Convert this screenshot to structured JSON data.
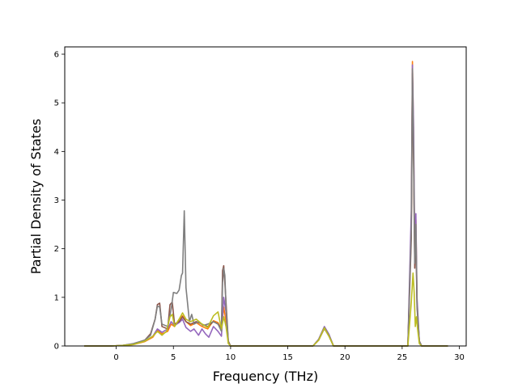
{
  "chart_data": {
    "type": "line",
    "title": "",
    "xlabel": "Frequency (THz)",
    "ylabel": "Partial Density of States",
    "xlim": [
      -4.5,
      30.6
    ],
    "ylim": [
      0,
      6.15
    ],
    "xticks": [
      0,
      5,
      10,
      15,
      20,
      25,
      30
    ],
    "yticks": [
      0,
      1,
      2,
      3,
      4,
      5,
      6
    ],
    "grid": false,
    "legend": "none",
    "series": [
      {
        "color": "#ff7f0e",
        "points": [
          [
            -2.8,
            0
          ],
          [
            -0.5,
            0
          ],
          [
            0.5,
            0.01
          ],
          [
            1.5,
            0.03
          ],
          [
            2.5,
            0.09
          ],
          [
            3.2,
            0.18
          ],
          [
            3.6,
            0.32
          ],
          [
            4.0,
            0.25
          ],
          [
            4.5,
            0.3
          ],
          [
            4.8,
            0.45
          ],
          [
            5.1,
            0.4
          ],
          [
            5.5,
            0.55
          ],
          [
            5.8,
            0.62
          ],
          [
            6.1,
            0.5
          ],
          [
            6.5,
            0.42
          ],
          [
            7.0,
            0.48
          ],
          [
            7.5,
            0.4
          ],
          [
            8.0,
            0.35
          ],
          [
            8.5,
            0.52
          ],
          [
            8.9,
            0.48
          ],
          [
            9.2,
            0.35
          ],
          [
            9.4,
            0.8
          ],
          [
            9.6,
            0.5
          ],
          [
            9.8,
            0.06
          ],
          [
            10.0,
            0
          ],
          [
            17.2,
            0
          ],
          [
            17.7,
            0.12
          ],
          [
            18.2,
            0.38
          ],
          [
            18.6,
            0.22
          ],
          [
            19.0,
            0
          ],
          [
            25.5,
            0
          ],
          [
            25.8,
            2.5
          ],
          [
            25.9,
            5.85
          ],
          [
            26.0,
            4.2
          ],
          [
            26.1,
            1.8
          ],
          [
            26.2,
            2.6
          ],
          [
            26.3,
            0.9
          ],
          [
            26.5,
            0.1
          ],
          [
            26.7,
            0
          ],
          [
            29.0,
            0
          ]
        ]
      },
      {
        "color": "#9467bd",
        "points": [
          [
            -2.8,
            0
          ],
          [
            -0.5,
            0
          ],
          [
            0.5,
            0.01
          ],
          [
            1.5,
            0.04
          ],
          [
            2.5,
            0.1
          ],
          [
            3.2,
            0.2
          ],
          [
            3.6,
            0.35
          ],
          [
            4.0,
            0.28
          ],
          [
            4.5,
            0.35
          ],
          [
            4.8,
            0.5
          ],
          [
            5.1,
            0.42
          ],
          [
            5.5,
            0.48
          ],
          [
            5.8,
            0.55
          ],
          [
            6.1,
            0.38
          ],
          [
            6.5,
            0.3
          ],
          [
            6.8,
            0.35
          ],
          [
            7.2,
            0.22
          ],
          [
            7.5,
            0.35
          ],
          [
            7.8,
            0.25
          ],
          [
            8.1,
            0.18
          ],
          [
            8.5,
            0.4
          ],
          [
            8.9,
            0.3
          ],
          [
            9.2,
            0.2
          ],
          [
            9.4,
            1.0
          ],
          [
            9.6,
            0.7
          ],
          [
            9.8,
            0.08
          ],
          [
            10.0,
            0
          ],
          [
            17.2,
            0
          ],
          [
            17.7,
            0.14
          ],
          [
            18.2,
            0.4
          ],
          [
            18.6,
            0.24
          ],
          [
            19.0,
            0
          ],
          [
            25.5,
            0
          ],
          [
            25.8,
            2.8
          ],
          [
            25.9,
            5.78
          ],
          [
            26.0,
            4.5
          ],
          [
            26.1,
            2.0
          ],
          [
            26.2,
            2.72
          ],
          [
            26.3,
            1.0
          ],
          [
            26.5,
            0.1
          ],
          [
            26.7,
            0
          ],
          [
            29.0,
            0
          ]
        ]
      },
      {
        "color": "#8c564b",
        "points": [
          [
            -2.8,
            0
          ],
          [
            -0.5,
            0
          ],
          [
            0.5,
            0.01
          ],
          [
            1.5,
            0.04
          ],
          [
            2.5,
            0.12
          ],
          [
            3.0,
            0.25
          ],
          [
            3.4,
            0.55
          ],
          [
            3.6,
            0.85
          ],
          [
            3.8,
            0.88
          ],
          [
            4.0,
            0.4
          ],
          [
            4.5,
            0.35
          ],
          [
            4.7,
            0.85
          ],
          [
            4.9,
            0.9
          ],
          [
            5.1,
            0.45
          ],
          [
            5.5,
            0.5
          ],
          [
            5.8,
            0.6
          ],
          [
            6.1,
            0.5
          ],
          [
            6.5,
            0.45
          ],
          [
            7.0,
            0.5
          ],
          [
            7.5,
            0.45
          ],
          [
            8.0,
            0.4
          ],
          [
            8.5,
            0.5
          ],
          [
            8.9,
            0.45
          ],
          [
            9.2,
            0.35
          ],
          [
            9.3,
            1.55
          ],
          [
            9.4,
            1.65
          ],
          [
            9.5,
            1.3
          ],
          [
            9.6,
            0.9
          ],
          [
            9.8,
            0.1
          ],
          [
            10.0,
            0
          ],
          [
            17.2,
            0
          ],
          [
            17.7,
            0.12
          ],
          [
            18.2,
            0.36
          ],
          [
            18.6,
            0.2
          ],
          [
            19.0,
            0
          ],
          [
            25.5,
            0
          ],
          [
            25.8,
            2.2
          ],
          [
            25.9,
            5.6
          ],
          [
            26.0,
            3.8
          ],
          [
            26.1,
            1.6
          ],
          [
            26.2,
            2.3
          ],
          [
            26.3,
            0.8
          ],
          [
            26.5,
            0.1
          ],
          [
            26.7,
            0
          ],
          [
            29.0,
            0
          ]
        ]
      },
      {
        "color": "#7f7f7f",
        "points": [
          [
            -2.8,
            0
          ],
          [
            -0.5,
            0
          ],
          [
            0.5,
            0.01
          ],
          [
            1.5,
            0.05
          ],
          [
            2.5,
            0.12
          ],
          [
            3.0,
            0.22
          ],
          [
            3.4,
            0.55
          ],
          [
            3.6,
            0.82
          ],
          [
            3.8,
            0.8
          ],
          [
            4.0,
            0.45
          ],
          [
            4.5,
            0.4
          ],
          [
            4.8,
            0.75
          ],
          [
            5.0,
            1.1
          ],
          [
            5.3,
            1.08
          ],
          [
            5.5,
            1.15
          ],
          [
            5.7,
            1.45
          ],
          [
            5.8,
            1.5
          ],
          [
            5.95,
            2.78
          ],
          [
            6.1,
            1.2
          ],
          [
            6.4,
            0.5
          ],
          [
            6.6,
            0.65
          ],
          [
            6.8,
            0.45
          ],
          [
            7.2,
            0.5
          ],
          [
            7.6,
            0.42
          ],
          [
            8.0,
            0.45
          ],
          [
            8.5,
            0.5
          ],
          [
            8.9,
            0.45
          ],
          [
            9.2,
            0.3
          ],
          [
            9.3,
            1.3
          ],
          [
            9.4,
            1.6
          ],
          [
            9.5,
            1.45
          ],
          [
            9.6,
            0.8
          ],
          [
            9.8,
            0.08
          ],
          [
            10.0,
            0
          ],
          [
            17.2,
            0
          ],
          [
            17.7,
            0.13
          ],
          [
            18.2,
            0.38
          ],
          [
            18.6,
            0.22
          ],
          [
            19.0,
            0
          ],
          [
            25.5,
            0
          ],
          [
            25.8,
            2.4
          ],
          [
            25.9,
            5.7
          ],
          [
            26.0,
            4.0
          ],
          [
            26.1,
            1.7
          ],
          [
            26.2,
            2.5
          ],
          [
            26.3,
            0.85
          ],
          [
            26.5,
            0.1
          ],
          [
            26.7,
            0
          ],
          [
            29.0,
            0
          ]
        ]
      },
      {
        "color": "#bcbd22",
        "points": [
          [
            -2.8,
            0
          ],
          [
            -0.5,
            0
          ],
          [
            0.5,
            0.01
          ],
          [
            1.5,
            0.03
          ],
          [
            2.5,
            0.1
          ],
          [
            3.2,
            0.2
          ],
          [
            3.6,
            0.3
          ],
          [
            4.0,
            0.22
          ],
          [
            4.4,
            0.3
          ],
          [
            4.7,
            0.6
          ],
          [
            4.9,
            0.65
          ],
          [
            5.1,
            0.4
          ],
          [
            5.5,
            0.55
          ],
          [
            5.8,
            0.68
          ],
          [
            6.1,
            0.55
          ],
          [
            6.5,
            0.5
          ],
          [
            7.0,
            0.55
          ],
          [
            7.5,
            0.45
          ],
          [
            8.0,
            0.38
          ],
          [
            8.5,
            0.62
          ],
          [
            8.9,
            0.7
          ],
          [
            9.2,
            0.35
          ],
          [
            9.4,
            0.6
          ],
          [
            9.6,
            0.4
          ],
          [
            9.8,
            0.05
          ],
          [
            10.0,
            0
          ],
          [
            17.2,
            0
          ],
          [
            17.7,
            0.12
          ],
          [
            18.2,
            0.37
          ],
          [
            18.6,
            0.2
          ],
          [
            19.0,
            0
          ],
          [
            25.5,
            0
          ],
          [
            25.8,
            0.9
          ],
          [
            25.95,
            1.5
          ],
          [
            26.05,
            1.1
          ],
          [
            26.15,
            0.4
          ],
          [
            26.25,
            0.6
          ],
          [
            26.35,
            0.35
          ],
          [
            26.5,
            0.05
          ],
          [
            26.7,
            0
          ],
          [
            29.0,
            0
          ]
        ]
      }
    ]
  }
}
